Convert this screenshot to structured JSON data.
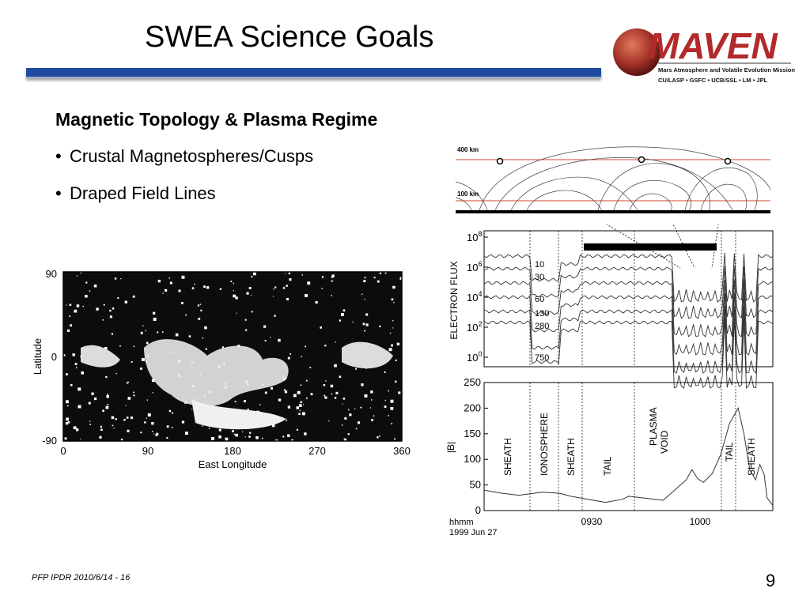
{
  "slide": {
    "title": "SWEA Science Goals",
    "heading": "Magnetic Topology & Plasma Regime",
    "bullets": [
      "Crustal Magnetospheres/Cusps",
      "Draped Field Lines"
    ],
    "footer": "PFP IPDR 2010/6/14 - 16",
    "page_number": "9",
    "accent_color": "#1f4aa0"
  },
  "logo": {
    "wordmark": "MAVEN",
    "subtitle": "Mars Atmosphere and Volatile Evolution Mission",
    "partners": "CU/LASP • GSFC • UCB/SSL • LM • JPL",
    "brand_color": "#b22a2a"
  },
  "map_figure": {
    "ylabel": "Latitude",
    "xlabel": "East Longitude",
    "yticks": [
      "90",
      "0",
      "-90"
    ],
    "xticks": [
      "0",
      "90",
      "180",
      "270",
      "360"
    ]
  },
  "field_figure": {
    "alt_high": "400 km",
    "alt_low": "100 km"
  },
  "chart_data": [
    {
      "type": "line",
      "ylabel": "ELECTRON FLUX",
      "ylim_exponents": [
        0,
        8
      ],
      "ytick_exponents": [
        "0",
        "2",
        "4",
        "6",
        "8"
      ],
      "ytick_base": "10",
      "energy_labels": [
        "10",
        "30",
        "60",
        "130",
        "280",
        "750"
      ]
    },
    {
      "type": "line",
      "ylabel": "|B|",
      "ylim": [
        0,
        250
      ],
      "yticks": [
        "0",
        "50",
        "100",
        "150",
        "200",
        "250"
      ],
      "xticks": [
        "0930",
        "1000"
      ],
      "x_caption_line1": "hhmm",
      "x_caption_line2": "1999 Jun 27",
      "regions": [
        "SHEATH",
        "IONOSPHERE",
        "SHEATH",
        "TAIL",
        "PLASMA",
        "VOID",
        "TAIL",
        "SHEATH"
      ],
      "b_profile": [
        [
          0,
          40
        ],
        [
          0.06,
          34
        ],
        [
          0.12,
          30
        ],
        [
          0.2,
          36
        ],
        [
          0.26,
          34
        ],
        [
          0.3,
          28
        ],
        [
          0.36,
          22
        ],
        [
          0.42,
          16
        ],
        [
          0.48,
          22
        ],
        [
          0.5,
          28
        ],
        [
          0.56,
          24
        ],
        [
          0.62,
          20
        ],
        [
          0.66,
          40
        ],
        [
          0.7,
          60
        ],
        [
          0.72,
          80
        ],
        [
          0.74,
          62
        ],
        [
          0.76,
          55
        ],
        [
          0.79,
          72
        ],
        [
          0.82,
          110
        ],
        [
          0.85,
          170
        ],
        [
          0.88,
          200
        ],
        [
          0.9,
          150
        ],
        [
          0.92,
          80
        ],
        [
          0.94,
          60
        ],
        [
          0.955,
          90
        ],
        [
          0.97,
          70
        ],
        [
          0.98,
          25
        ],
        [
          1.0,
          10
        ]
      ]
    }
  ]
}
